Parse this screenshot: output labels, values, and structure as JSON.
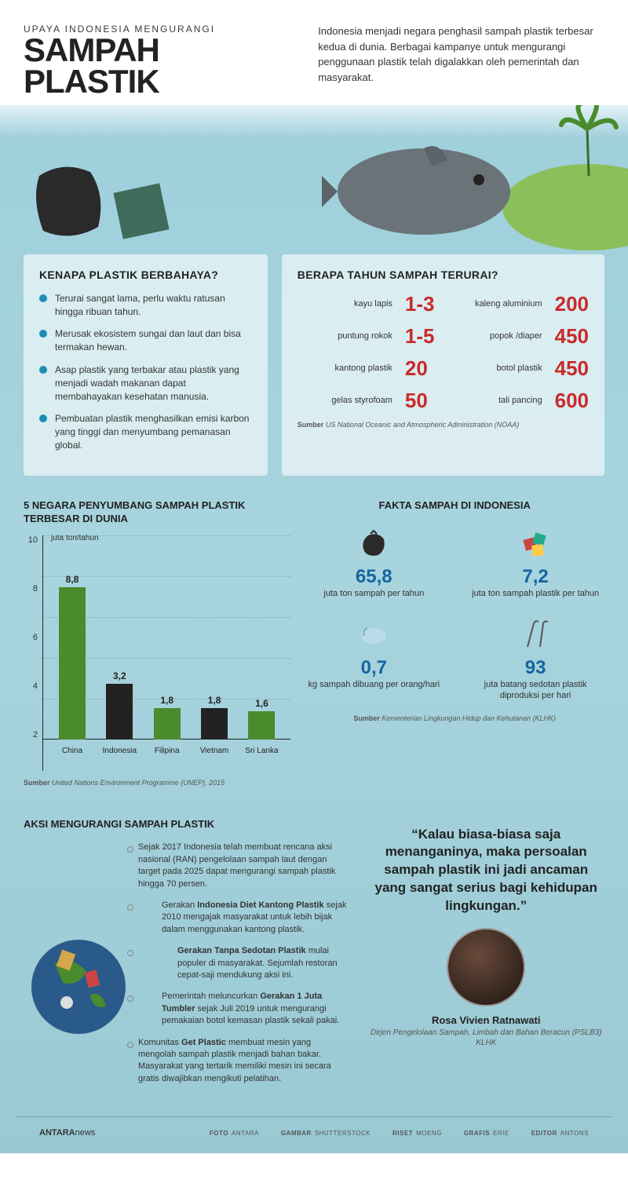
{
  "header": {
    "subtitle": "UPAYA INDONESIA MENGURANGI",
    "title": "SAMPAH PLASTIK",
    "intro": "Indonesia menjadi negara penghasil sampah plastik terbesar kedua di dunia. Berbagai kampanye untuk mengurangi penggunaan plastik telah digalakkan oleh pemerintah dan masyarakat."
  },
  "colors": {
    "accent_blue": "#1a8fb3",
    "stat_blue": "#1565a0",
    "danger_red": "#c92a2a",
    "bar_green": "#4a8b2e",
    "bar_black": "#222222",
    "panel_bg": "rgba(255,255,255,0.6)"
  },
  "panel_danger": {
    "title": "KENAPA PLASTIK BERBAHAYA?",
    "bullets": [
      "Terurai sangat lama, perlu waktu ratusan hingga ribuan tahun.",
      "Merusak ekosistem sungai dan laut dan bisa termakan hewan.",
      "Asap plastik yang terbakar atau plastik yang menjadi wadah makanan dapat membahayakan kesehatan manusia.",
      "Pembuatan plastik menghasilkan emisi karbon yang tinggi dan menyumbang pemanasan global."
    ]
  },
  "panel_decomp": {
    "title": "BERAPA TAHUN SAMPAH TERURAI?",
    "rows": [
      {
        "l1": "kayu lapis",
        "v1": "1-3",
        "l2": "kaleng aluminium",
        "v2": "200"
      },
      {
        "l1": "puntung rokok",
        "v1": "1-5",
        "l2": "popok /diaper",
        "v2": "450"
      },
      {
        "l1": "kantong plastik",
        "v1": "20",
        "l2": "botol plastik",
        "v2": "450"
      },
      {
        "l1": "gelas styrofoam",
        "v1": "50",
        "l2": "tali pancing",
        "v2": "600"
      }
    ],
    "source_label": "Sumber",
    "source": "US National Oceanic and Atmospheric Administration (NOAA)"
  },
  "chart": {
    "title": "5 NEGARA PENYUMBANG SAMPAH PLASTIK TERBESAR DI DUNIA",
    "unit": "juta ton/tahun",
    "ymax": 10,
    "yticks": [
      "10",
      "8",
      "6",
      "4",
      "2"
    ],
    "bars": [
      {
        "label": "China",
        "value": 8.8,
        "disp": "8,8",
        "color": "#4a8b2e"
      },
      {
        "label": "Indonesia",
        "value": 3.2,
        "disp": "3,2",
        "color": "#222222"
      },
      {
        "label": "Filipina",
        "value": 1.8,
        "disp": "1,8",
        "color": "#4a8b2e"
      },
      {
        "label": "Vietnam",
        "value": 1.8,
        "disp": "1,8",
        "color": "#222222"
      },
      {
        "label": "Sri Lanka",
        "value": 1.6,
        "disp": "1,6",
        "color": "#4a8b2e"
      }
    ],
    "source_label": "Sumber",
    "source": "United Nations Environment Programme (UNEP), 2015"
  },
  "facts": {
    "title": "FAKTA SAMPAH DI INDONESIA",
    "cells": [
      {
        "num": "65,8",
        "label": "juta ton sampah per tahun"
      },
      {
        "num": "7,2",
        "label": "juta ton sampah plastik per tahun"
      },
      {
        "num": "0,7",
        "label": "kg sampah dibuang per orang/hari"
      },
      {
        "num": "93",
        "label": "juta batang sedotan plastik diproduksi per hari"
      }
    ],
    "source_label": "Sumber",
    "source": "Kementerian Lingkungan Hidup dan Kehutanan (KLHK)"
  },
  "actions": {
    "title": "AKSI MENGURANGI SAMPAH PLASTIK",
    "items": [
      "Sejak 2017 Indonesia telah membuat rencana aksi nasional (RAN) pengelolaan sampah laut dengan target pada 2025 dapat mengurangi sampah plastik hingga 70 persen.",
      "Gerakan <b>Indonesia Diet Kantong Plastik</b> sejak 2010 mengajak masyarakat untuk lebih bijak dalam menggunakan kantong plastik.",
      "<b>Gerakan Tanpa Sedotan Plastik</b> mulai populer di masyarakat. Sejumlah restoran cepat-saji mendukung aksi ini.",
      "Pemerintah meluncurkan <b>Gerakan 1 Juta Tumbler</b> sejak Juli 2019 untuk mengurangi pemakaian botol kemasan plastik sekali pakai.",
      "Komunitas <b>Get Plastic</b> membuat mesin yang mengolah sampah plastik menjadi bahan bakar. Masyarakat yang tertarik memiliki mesin ini secara gratis diwajibkan mengikuti pelatihan."
    ]
  },
  "quote": {
    "text": "“Kalau biasa-biasa saja menanganinya, maka persoalan sampah plastik ini jadi ancaman yang sangat serius bagi kehidupan lingkungan.”",
    "name": "Rosa Vivien Ratnawati",
    "role": "Dirjen Pengelolaan Sampah, Limbah dan Bahan Beracun (PSLB3) KLHK"
  },
  "footer": {
    "brand_a": "ANTARA",
    "brand_b": "news",
    "credits": [
      {
        "k": "FOTO",
        "v": "ANTARA"
      },
      {
        "k": "GAMBAR",
        "v": "SHUTTERSTOCK"
      },
      {
        "k": "RISET",
        "v": "MOENG"
      },
      {
        "k": "GRAFIS",
        "v": "ERIE"
      },
      {
        "k": "EDITOR",
        "v": "ANTONS"
      }
    ]
  }
}
